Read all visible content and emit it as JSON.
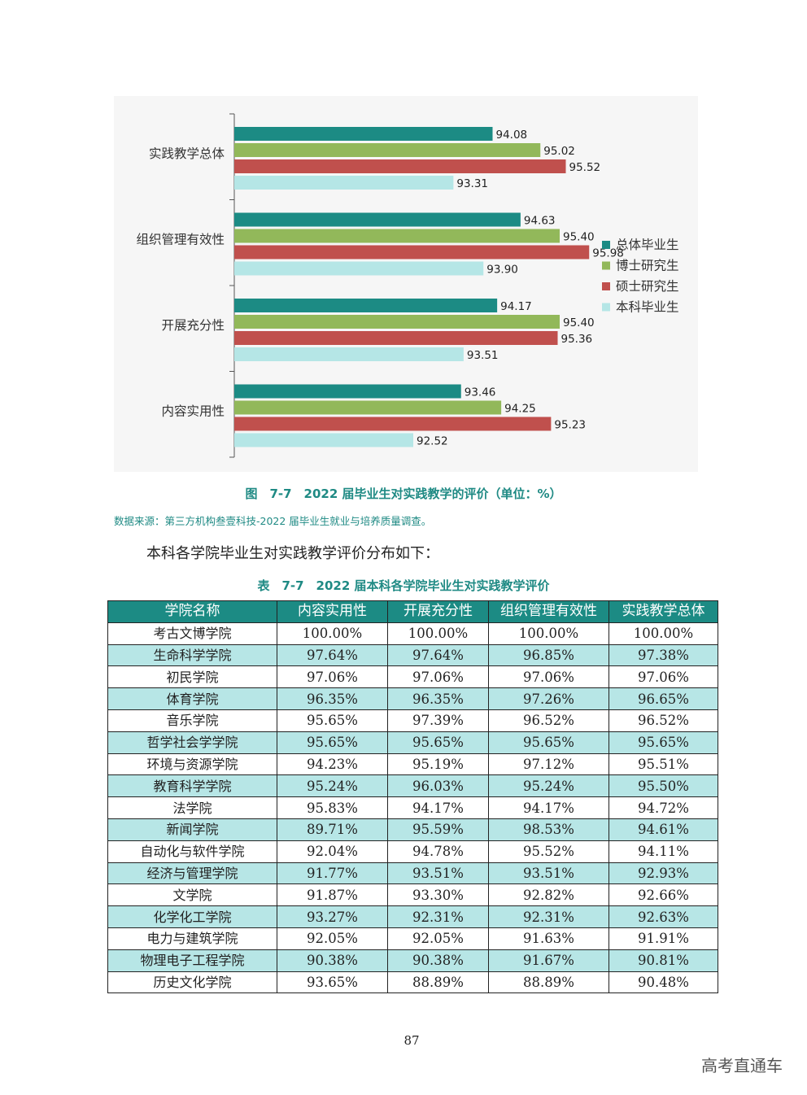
{
  "chart_data": {
    "type": "bar",
    "orientation": "horizontal",
    "categories": [
      "实践教学总体",
      "组织管理有效性",
      "开展充分性",
      "内容实用性"
    ],
    "series": [
      {
        "name": "总体毕业生",
        "color": "#1c8b84",
        "values": [
          94.08,
          94.63,
          94.17,
          93.46
        ]
      },
      {
        "name": "博士研究生",
        "color": "#92b85a",
        "values": [
          95.02,
          95.4,
          95.4,
          94.25
        ]
      },
      {
        "name": "硕士研究生",
        "color": "#c0504d",
        "values": [
          95.52,
          95.98,
          95.36,
          95.23
        ]
      },
      {
        "name": "本科毕业生",
        "color": "#b5e6e6",
        "values": [
          93.31,
          93.9,
          93.51,
          92.52
        ]
      }
    ],
    "value_labels": [
      [
        "94.08",
        "95.02",
        "95.52",
        "93.31"
      ],
      [
        "94.63",
        "95.40",
        "95.98",
        "93.90"
      ],
      [
        "94.17",
        "95.40",
        "95.36",
        "93.51"
      ],
      [
        "93.46",
        "94.25",
        "95.23",
        "92.52"
      ]
    ],
    "xlim": [
      89,
      97
    ],
    "legend_position": "right"
  },
  "figure": {
    "caption": "图　7-7　2022 届毕业生对实践教学的评价（单位：%）",
    "source": "数据来源：第三方机构叁壹科技-2022 届毕业生就业与培养质量调查。"
  },
  "intro_text": "本科各学院毕业生对实践教学评价分布如下：",
  "table": {
    "title": "表　7-7　2022 届本科各学院毕业生对实践教学评价",
    "headers": [
      "学院名称",
      "内容实用性",
      "开展充分性",
      "组织管理有效性",
      "实践教学总体"
    ],
    "rows": [
      [
        "考古文博学院",
        "100.00%",
        "100.00%",
        "100.00%",
        "100.00%"
      ],
      [
        "生命科学学院",
        "97.64%",
        "97.64%",
        "96.85%",
        "97.38%"
      ],
      [
        "初民学院",
        "97.06%",
        "97.06%",
        "97.06%",
        "97.06%"
      ],
      [
        "体育学院",
        "96.35%",
        "96.35%",
        "97.26%",
        "96.65%"
      ],
      [
        "音乐学院",
        "95.65%",
        "97.39%",
        "96.52%",
        "96.52%"
      ],
      [
        "哲学社会学学院",
        "95.65%",
        "95.65%",
        "95.65%",
        "95.65%"
      ],
      [
        "环境与资源学院",
        "94.23%",
        "95.19%",
        "97.12%",
        "95.51%"
      ],
      [
        "教育科学学院",
        "95.24%",
        "96.03%",
        "95.24%",
        "95.50%"
      ],
      [
        "法学院",
        "95.83%",
        "94.17%",
        "94.17%",
        "94.72%"
      ],
      [
        "新闻学院",
        "89.71%",
        "95.59%",
        "98.53%",
        "94.61%"
      ],
      [
        "自动化与软件学院",
        "92.04%",
        "94.78%",
        "95.52%",
        "94.11%"
      ],
      [
        "经济与管理学院",
        "91.77%",
        "93.51%",
        "93.51%",
        "92.93%"
      ],
      [
        "文学院",
        "91.87%",
        "93.30%",
        "92.82%",
        "92.66%"
      ],
      [
        "化学化工学院",
        "93.27%",
        "92.31%",
        "92.31%",
        "92.63%"
      ],
      [
        "电力与建筑学院",
        "92.05%",
        "92.05%",
        "91.63%",
        "91.91%"
      ],
      [
        "物理电子工程学院",
        "90.38%",
        "90.38%",
        "91.67%",
        "90.81%"
      ],
      [
        "历史文化学院",
        "93.65%",
        "88.89%",
        "88.89%",
        "90.48%"
      ]
    ]
  },
  "page_number": "87",
  "watermark": "高考直通车"
}
